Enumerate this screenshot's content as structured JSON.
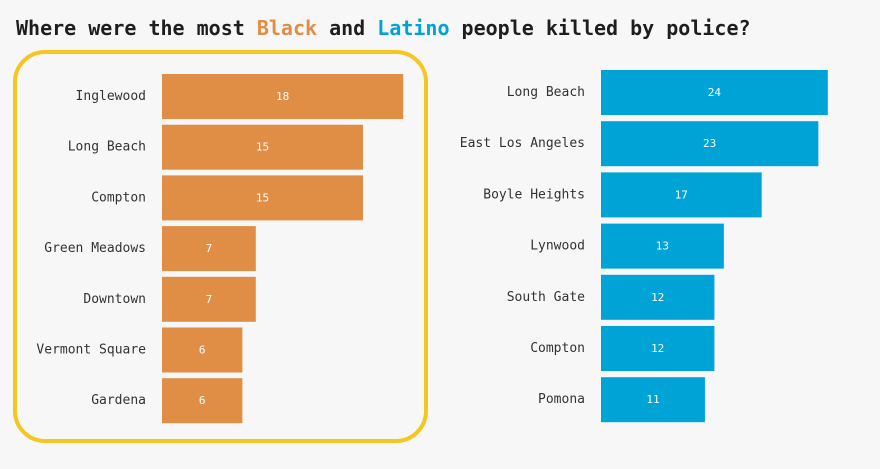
{
  "title": {
    "prefix": "Where were the most ",
    "highlight_black": "Black",
    "middle": " and ",
    "highlight_latino": "Latino",
    "suffix": " people killed by police?"
  },
  "colors": {
    "black_series": "#e08e45",
    "latino_series": "#00a3d6",
    "highlight_box": "#f5c522",
    "background": "#f7f7f7",
    "text": "#1e1e1e"
  },
  "chart_data": [
    {
      "type": "bar",
      "orientation": "horizontal",
      "series_name": "Black",
      "highlighted": true,
      "categories": [
        "Inglewood",
        "Long Beach",
        "Compton",
        "Green Meadows",
        "Downtown",
        "Vermont Square",
        "Gardena"
      ],
      "values": [
        18,
        15,
        15,
        7,
        7,
        6,
        6
      ],
      "data_labels": true,
      "grid": false
    },
    {
      "type": "bar",
      "orientation": "horizontal",
      "series_name": "Latino",
      "highlighted": false,
      "categories": [
        "Long Beach",
        "East Los Angeles",
        "Boyle Heights",
        "Lynwood",
        "South Gate",
        "Compton",
        "Pomona"
      ],
      "values": [
        24,
        23,
        17,
        13,
        12,
        12,
        11
      ],
      "data_labels": true,
      "grid": false
    }
  ]
}
